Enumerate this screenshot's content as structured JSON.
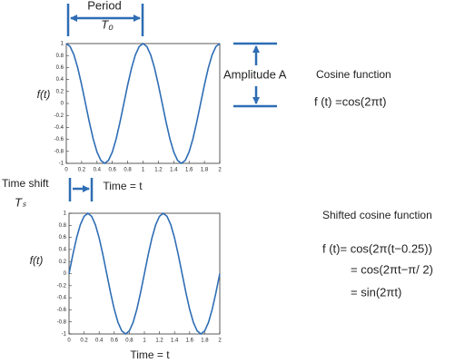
{
  "chart_data": [
    {
      "type": "line",
      "annotations": {
        "period": "Period",
        "period_symbol": "T₀",
        "amplitude": "Amplitude A",
        "function_title": "Cosine function",
        "equations": [
          "f (t)  =cos(2πt)"
        ]
      },
      "y_label": "f(t)",
      "x_label": "Time = t",
      "x": [
        0,
        0.05,
        0.1,
        0.15,
        0.2,
        0.25,
        0.3,
        0.35,
        0.4,
        0.45,
        0.5,
        0.55,
        0.6,
        0.65,
        0.7,
        0.75,
        0.8,
        0.85,
        0.9,
        0.95,
        1,
        1.05,
        1.1,
        1.15,
        1.2,
        1.25,
        1.3,
        1.35,
        1.4,
        1.45,
        1.5,
        1.55,
        1.6,
        1.65,
        1.7,
        1.75,
        1.8,
        1.85,
        1.9,
        1.95,
        2
      ],
      "values": [
        1,
        0.95,
        0.81,
        0.59,
        0.31,
        0,
        -0.31,
        -0.59,
        -0.81,
        -0.95,
        -1,
        -0.95,
        -0.81,
        -0.59,
        -0.31,
        0,
        0.31,
        0.59,
        0.81,
        0.95,
        1,
        0.95,
        0.81,
        0.59,
        0.31,
        0,
        -0.31,
        -0.59,
        -0.81,
        -0.95,
        -1,
        -0.95,
        -0.81,
        -0.59,
        -0.31,
        0,
        0.31,
        0.59,
        0.81,
        0.95,
        1
      ],
      "color": "#2e6db4",
      "xlim": [
        0,
        2
      ],
      "xticks": [
        0,
        0.2,
        0.4,
        0.6,
        0.8,
        1,
        1.2,
        1.4,
        1.6,
        1.8,
        2
      ],
      "ylim": [
        -1,
        1
      ],
      "yticks": [
        -1,
        -0.8,
        -0.6,
        -0.4,
        -0.2,
        0,
        0.2,
        0.4,
        0.6,
        0.8,
        1
      ]
    },
    {
      "type": "line",
      "annotations": {
        "time_shift": "Time shift",
        "time_shift_symbol": "Tₛ",
        "function_title": "Shifted cosine function",
        "equations": [
          "f (t)=  cos(2π(t−0.25))",
          "=   cos(2πt−π/ 2)",
          "= sin(2πt)"
        ]
      },
      "y_label": "f(t)",
      "x_label": "Time = t",
      "x": [
        0,
        0.05,
        0.1,
        0.15,
        0.2,
        0.25,
        0.3,
        0.35,
        0.4,
        0.45,
        0.5,
        0.55,
        0.6,
        0.65,
        0.7,
        0.75,
        0.8,
        0.85,
        0.9,
        0.95,
        1,
        1.05,
        1.1,
        1.15,
        1.2,
        1.25,
        1.3,
        1.35,
        1.4,
        1.45,
        1.5,
        1.55,
        1.6,
        1.65,
        1.7,
        1.75,
        1.8,
        1.85,
        1.9,
        1.95,
        2
      ],
      "values": [
        0,
        0.31,
        0.59,
        0.81,
        0.95,
        1,
        0.95,
        0.81,
        0.59,
        0.31,
        0,
        -0.31,
        -0.59,
        -0.81,
        -0.95,
        -1,
        -0.95,
        -0.81,
        -0.59,
        -0.31,
        0,
        0.31,
        0.59,
        0.81,
        0.95,
        1,
        0.95,
        0.81,
        0.59,
        0.31,
        0,
        -0.31,
        -0.59,
        -0.81,
        -0.95,
        -1,
        -0.95,
        -0.81,
        -0.59,
        -0.31,
        0
      ],
      "color": "#2e6db4",
      "xlim": [
        0,
        2
      ],
      "xticks": [
        0,
        0.2,
        0.4,
        0.6,
        0.8,
        1,
        1.2,
        1.4,
        1.6,
        1.8,
        2
      ],
      "ylim": [
        -1,
        1
      ],
      "yticks": [
        -1,
        -0.8,
        -0.6,
        -0.4,
        -0.2,
        0,
        0.2,
        0.4,
        0.6,
        0.8,
        1
      ]
    }
  ]
}
